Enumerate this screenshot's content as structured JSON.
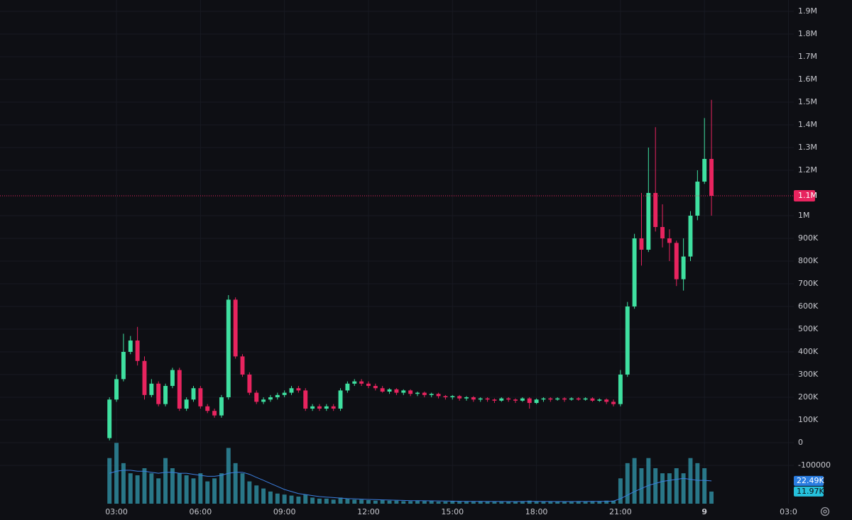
{
  "chart_data": {
    "type": "candlestick",
    "x": [
      2.75,
      3.0,
      3.25,
      3.5,
      3.75,
      4.0,
      4.25,
      4.5,
      4.75,
      5.0,
      5.25,
      5.5,
      5.75,
      6.0,
      6.25,
      6.5,
      6.75,
      7.0,
      7.25,
      7.5,
      7.75,
      8.0,
      8.25,
      8.5,
      8.75,
      9.0,
      9.25,
      9.5,
      9.75,
      10.0,
      10.25,
      10.5,
      10.75,
      11.0,
      11.25,
      11.5,
      11.75,
      12.0,
      12.25,
      12.5,
      12.75,
      13.0,
      13.25,
      13.5,
      13.75,
      14.0,
      14.25,
      14.5,
      14.75,
      15.0,
      15.25,
      15.5,
      15.75,
      16.0,
      16.25,
      16.5,
      16.75,
      17.0,
      17.25,
      17.5,
      17.75,
      18.0,
      18.25,
      18.5,
      18.75,
      19.0,
      19.25,
      19.5,
      19.75,
      20.0,
      20.25,
      20.5,
      20.75,
      21.0,
      21.25,
      21.5,
      21.75,
      22.0,
      22.25,
      22.5,
      22.75,
      23.0,
      23.25,
      23.5,
      23.75,
      24.0,
      24.25
    ],
    "open": [
      20000,
      190000,
      280000,
      400000,
      450000,
      360000,
      210000,
      260000,
      170000,
      250000,
      320000,
      150000,
      190000,
      240000,
      160000,
      140000,
      120000,
      200000,
      630000,
      380000,
      300000,
      220000,
      180000,
      190000,
      200000,
      210000,
      220000,
      240000,
      230000,
      150000,
      160000,
      150000,
      160000,
      150000,
      230000,
      260000,
      270000,
      260000,
      250000,
      240000,
      225000,
      235000,
      220000,
      230000,
      215000,
      220000,
      210000,
      215000,
      205000,
      200000,
      205000,
      195000,
      200000,
      190000,
      195000,
      190000,
      185000,
      195000,
      190000,
      185000,
      195000,
      175000,
      190000,
      195000,
      190000,
      195000,
      190000,
      195000,
      190000,
      195000,
      185000,
      190000,
      180000,
      170000,
      300000,
      600000,
      900000,
      850000,
      1100000,
      950000,
      900000,
      880000,
      720000,
      820000,
      1000000,
      1150000,
      1250000
    ],
    "high": [
      200000,
      300000,
      480000,
      470000,
      510000,
      380000,
      280000,
      270000,
      260000,
      330000,
      330000,
      200000,
      250000,
      250000,
      170000,
      150000,
      210000,
      650000,
      640000,
      390000,
      310000,
      230000,
      200000,
      210000,
      220000,
      230000,
      250000,
      250000,
      240000,
      170000,
      170000,
      170000,
      170000,
      240000,
      270000,
      280000,
      280000,
      270000,
      260000,
      250000,
      240000,
      240000,
      235000,
      235000,
      225000,
      225000,
      220000,
      220000,
      210000,
      210000,
      210000,
      205000,
      205000,
      200000,
      200000,
      195000,
      200000,
      200000,
      195000,
      200000,
      200000,
      195000,
      200000,
      200000,
      200000,
      200000,
      200000,
      200000,
      200000,
      200000,
      195000,
      195000,
      190000,
      320000,
      620000,
      920000,
      1100000,
      1300000,
      1390000,
      1050000,
      940000,
      890000,
      900000,
      1020000,
      1200000,
      1430000,
      1510000
    ],
    "low": [
      10000,
      180000,
      270000,
      390000,
      340000,
      190000,
      200000,
      160000,
      160000,
      240000,
      140000,
      140000,
      180000,
      150000,
      130000,
      110000,
      110000,
      190000,
      370000,
      290000,
      210000,
      170000,
      170000,
      180000,
      190000,
      200000,
      210000,
      220000,
      140000,
      140000,
      140000,
      140000,
      140000,
      140000,
      220000,
      250000,
      250000,
      240000,
      230000,
      220000,
      215000,
      210000,
      210000,
      205000,
      205000,
      200000,
      200000,
      195000,
      190000,
      190000,
      185000,
      185000,
      180000,
      180000,
      180000,
      175000,
      180000,
      180000,
      175000,
      180000,
      150000,
      170000,
      180000,
      180000,
      185000,
      180000,
      185000,
      185000,
      185000,
      180000,
      180000,
      170000,
      160000,
      160000,
      290000,
      590000,
      780000,
      840000,
      930000,
      860000,
      800000,
      690000,
      670000,
      800000,
      980000,
      1140000,
      1000000
    ],
    "close": [
      190000,
      280000,
      400000,
      450000,
      360000,
      210000,
      260000,
      170000,
      250000,
      320000,
      150000,
      190000,
      240000,
      160000,
      140000,
      120000,
      200000,
      630000,
      380000,
      300000,
      220000,
      180000,
      190000,
      200000,
      210000,
      220000,
      240000,
      230000,
      150000,
      160000,
      150000,
      160000,
      150000,
      230000,
      260000,
      270000,
      260000,
      250000,
      240000,
      225000,
      235000,
      220000,
      230000,
      215000,
      220000,
      210000,
      215000,
      205000,
      200000,
      205000,
      195000,
      200000,
      190000,
      195000,
      190000,
      185000,
      195000,
      190000,
      185000,
      195000,
      175000,
      190000,
      195000,
      190000,
      195000,
      190000,
      195000,
      190000,
      195000,
      185000,
      190000,
      180000,
      170000,
      300000,
      600000,
      900000,
      850000,
      1100000,
      950000,
      900000,
      880000,
      720000,
      820000,
      1000000,
      1150000,
      1250000,
      1087500
    ],
    "volume": [
      45000,
      60000,
      40000,
      30000,
      28000,
      35000,
      30000,
      25000,
      45000,
      35000,
      30000,
      28000,
      25000,
      30000,
      22000,
      25000,
      30000,
      55000,
      40000,
      30000,
      22000,
      18000,
      15000,
      12000,
      10000,
      9000,
      8000,
      7000,
      9000,
      6000,
      5000,
      5000,
      4000,
      6000,
      5000,
      4000,
      4000,
      3500,
      3000,
      3500,
      3000,
      3000,
      2500,
      2500,
      3000,
      2500,
      2500,
      2000,
      2000,
      2500,
      2000,
      2000,
      2000,
      2500,
      2000,
      2000,
      2000,
      2000,
      2000,
      2500,
      3000,
      2000,
      2000,
      2000,
      2000,
      2000,
      2000,
      2500,
      2000,
      2500,
      2500,
      3000,
      3000,
      25000,
      40000,
      45000,
      35000,
      45000,
      35000,
      30000,
      30000,
      35000,
      30000,
      45000,
      40000,
      35000,
      11970
    ],
    "volume_ma": [
      30000,
      32000,
      33000,
      33000,
      32000,
      32000,
      31000,
      30000,
      31000,
      31000,
      30000,
      30000,
      29000,
      28000,
      27000,
      27000,
      28000,
      30000,
      31000,
      31000,
      29000,
      26000,
      23000,
      20000,
      17000,
      14000,
      12000,
      10000,
      9000,
      8000,
      7000,
      6500,
      6000,
      5500,
      5000,
      4800,
      4500,
      4200,
      4000,
      3800,
      3600,
      3400,
      3200,
      3000,
      3000,
      2900,
      2800,
      2700,
      2600,
      2500,
      2400,
      2300,
      2300,
      2300,
      2200,
      2200,
      2200,
      2100,
      2100,
      2200,
      2300,
      2300,
      2200,
      2200,
      2100,
      2100,
      2100,
      2200,
      2200,
      2300,
      2300,
      2400,
      2500,
      5000,
      8500,
      12000,
      15000,
      18000,
      20000,
      22000,
      23000,
      24000,
      25000,
      24000,
      23000,
      23000,
      22490
    ],
    "xlim": [
      -1.16,
      27.19
    ],
    "xticks": [
      {
        "value": 3,
        "label": "03:00"
      },
      {
        "value": 6,
        "label": "06:00"
      },
      {
        "value": 9,
        "label": "09:00"
      },
      {
        "value": 12,
        "label": "12:00"
      },
      {
        "value": 15,
        "label": "15:00"
      },
      {
        "value": 18,
        "label": "18:00"
      },
      {
        "value": 21,
        "label": "21:00"
      },
      {
        "value": 24,
        "label": "9"
      },
      {
        "value": 27,
        "label": "03:0"
      }
    ],
    "ylim": [
      -250000,
      1950000
    ],
    "yticks": [
      {
        "value": 1900000,
        "label": "1.9M"
      },
      {
        "value": 1800000,
        "label": "1.8M"
      },
      {
        "value": 1700000,
        "label": "1.7M"
      },
      {
        "value": 1600000,
        "label": "1.6M"
      },
      {
        "value": 1500000,
        "label": "1.5M"
      },
      {
        "value": 1400000,
        "label": "1.4M"
      },
      {
        "value": 1300000,
        "label": "1.3M"
      },
      {
        "value": 1200000,
        "label": "1.2M"
      },
      {
        "value": 1000000,
        "label": "1M"
      },
      {
        "value": 900000,
        "label": "900K"
      },
      {
        "value": 800000,
        "label": "800K"
      },
      {
        "value": 700000,
        "label": "700K"
      },
      {
        "value": 600000,
        "label": "600K"
      },
      {
        "value": 500000,
        "label": "500K"
      },
      {
        "value": 400000,
        "label": "400K"
      },
      {
        "value": 300000,
        "label": "300K"
      },
      {
        "value": 200000,
        "label": "200K"
      },
      {
        "value": 100000,
        "label": "100K"
      },
      0,
      -100000
    ],
    "volume_ylim": [
      0,
      70000
    ],
    "last_price": {
      "value": 1087500,
      "label": "1.1M"
    },
    "volume_ma_last": {
      "value": 22490,
      "label": "22.49K"
    },
    "volume_last": {
      "value": 11970,
      "label": "11.97K"
    },
    "up_color": "#3fe0a0",
    "down_color": "#e8245f",
    "volume_color": "#2e8a9c",
    "volume_ma_color": "#3b7fe0",
    "grid": true
  }
}
